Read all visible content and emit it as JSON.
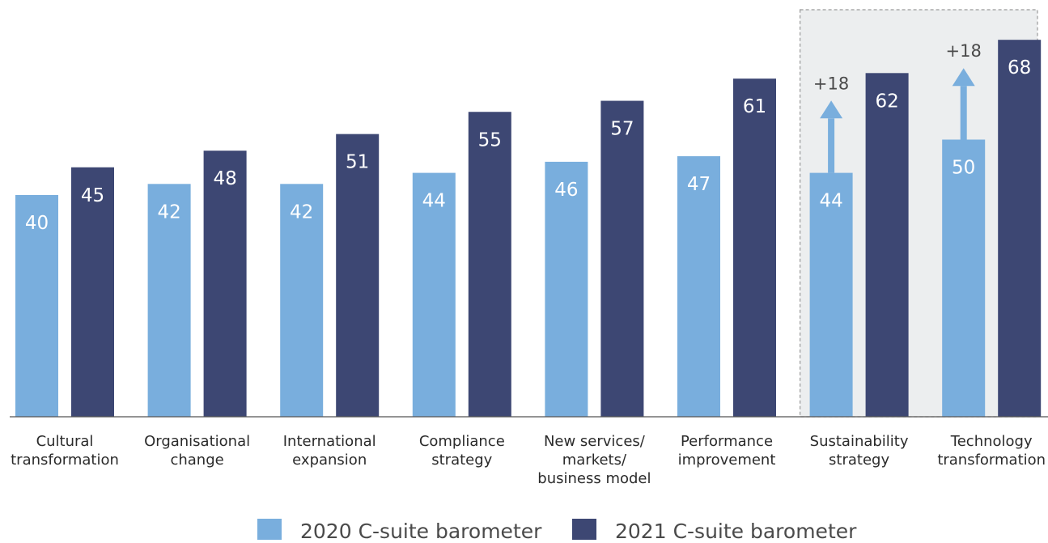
{
  "chart_data": {
    "type": "bar",
    "categories": [
      [
        "Cultural",
        "transformation"
      ],
      [
        "Organisational",
        "change"
      ],
      [
        "International",
        "expansion"
      ],
      [
        "Compliance",
        "strategy"
      ],
      [
        "New services/",
        "markets/",
        "business model"
      ],
      [
        "Performance",
        "improvement"
      ],
      [
        "Sustainability",
        "strategy"
      ],
      [
        "Technology",
        "transformation"
      ]
    ],
    "series": [
      {
        "name": "2020 C-suite barometer",
        "color": "#79aedd",
        "values": [
          40,
          42,
          42,
          44,
          46,
          47,
          44,
          50
        ]
      },
      {
        "name": "2021 C-suite barometer",
        "color": "#3d4773",
        "values": [
          45,
          48,
          51,
          55,
          57,
          61,
          62,
          68
        ]
      }
    ],
    "highlight": {
      "categories": [
        "Sustainability",
        "Technology"
      ],
      "background": "#eceeef",
      "deltas": [
        "+18",
        "+18"
      ]
    },
    "ylim": [
      0,
      70
    ],
    "grid": false,
    "legend_position": "bottom-center",
    "data_labels": true
  }
}
